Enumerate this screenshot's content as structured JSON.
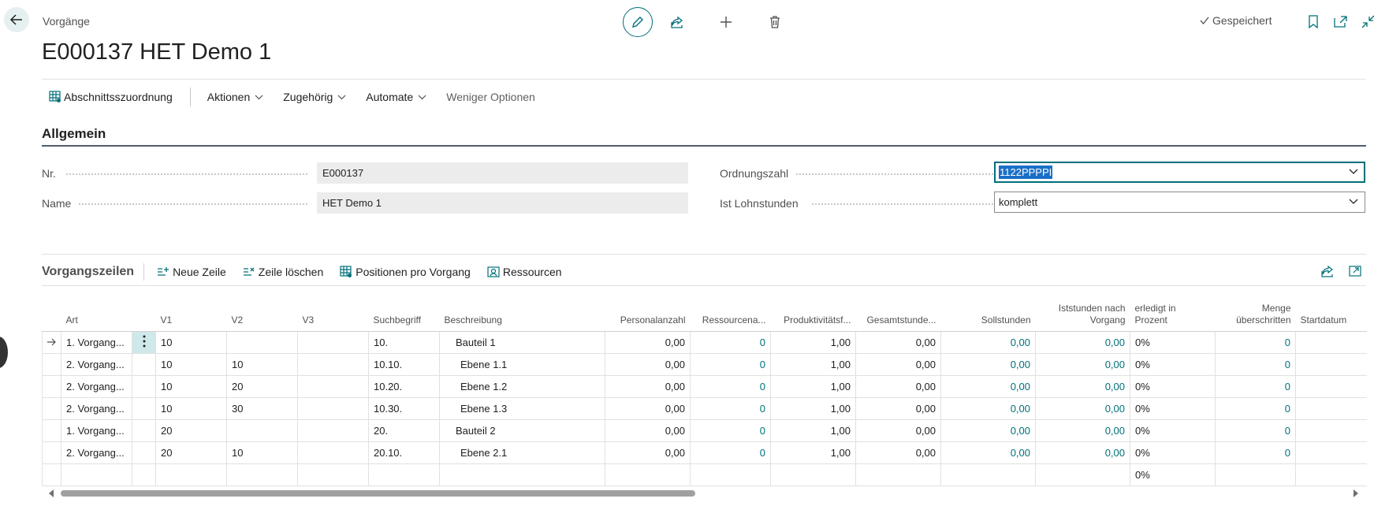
{
  "header": {
    "breadcrumb": "Vorgänge",
    "title": "E000137 HET Demo 1",
    "saved_label": "Gespeichert"
  },
  "actionbar": {
    "items": [
      {
        "label": "Abschnittsszuordnung"
      },
      {
        "label": "Aktionen"
      },
      {
        "label": "Zugehörig"
      },
      {
        "label": "Automate"
      },
      {
        "label": "Weniger Optionen"
      }
    ]
  },
  "general": {
    "title": "Allgemein",
    "nr_label": "Nr.",
    "nr_value": "E000137",
    "name_label": "Name",
    "name_value": "HET Demo 1",
    "ordnungszahl_label": "Ordnungszahl",
    "ordnungszahl_value": "1122PPPPI",
    "lohnstunden_label": "Ist Lohnstunden",
    "lohnstunden_value": "komplett"
  },
  "lines": {
    "title": "Vorgangszeilen",
    "actions": [
      {
        "label": "Neue Zeile"
      },
      {
        "label": "Zeile löschen"
      },
      {
        "label": "Positionen pro Vorgang"
      },
      {
        "label": "Ressourcen"
      }
    ],
    "columns": {
      "art": "Art",
      "v1": "V1",
      "v2": "V2",
      "v3": "V3",
      "suchbegriff": "Suchbegriff",
      "beschreibung": "Beschreibung",
      "personal": "Personalanzahl",
      "ressource": "Ressourcena...",
      "produkt": "Produktivitätsf...",
      "gesamt": "Gesamtstunde...",
      "soll": "Sollstunden",
      "ist_1": "Iststunden nach",
      "ist_2": "Vorgang",
      "erledigt_1": "erledigt in",
      "erledigt_2": "Prozent",
      "menge_1": "Menge",
      "menge_2": "überschritten",
      "start": "Startdatum"
    },
    "rows": [
      {
        "art": "1. Vorgang...",
        "v1": "10",
        "v2": "",
        "v3": "",
        "such": "10.",
        "beschr": "Bauteil 1",
        "personal": "0,00",
        "ressource": "0",
        "produkt": "1,00",
        "gesamt": "0,00",
        "soll": "0,00",
        "ist": "0,00",
        "erledigt": "0%",
        "menge": "0"
      },
      {
        "art": "2. Vorgang...",
        "v1": "10",
        "v2": "10",
        "v3": "",
        "such": "10.10.",
        "beschr": "Ebene 1.1",
        "personal": "0,00",
        "ressource": "0",
        "produkt": "1,00",
        "gesamt": "0,00",
        "soll": "0,00",
        "ist": "0,00",
        "erledigt": "0%",
        "menge": "0"
      },
      {
        "art": "2. Vorgang...",
        "v1": "10",
        "v2": "20",
        "v3": "",
        "such": "10.20.",
        "beschr": "Ebene 1.2",
        "personal": "0,00",
        "ressource": "0",
        "produkt": "1,00",
        "gesamt": "0,00",
        "soll": "0,00",
        "ist": "0,00",
        "erledigt": "0%",
        "menge": "0"
      },
      {
        "art": "2. Vorgang...",
        "v1": "10",
        "v2": "30",
        "v3": "",
        "such": "10.30.",
        "beschr": "Ebene 1.3",
        "personal": "0,00",
        "ressource": "0",
        "produkt": "1,00",
        "gesamt": "0,00",
        "soll": "0,00",
        "ist": "0,00",
        "erledigt": "0%",
        "menge": "0"
      },
      {
        "art": "1. Vorgang...",
        "v1": "20",
        "v2": "",
        "v3": "",
        "such": "20.",
        "beschr": "Bauteil 2",
        "personal": "0,00",
        "ressource": "0",
        "produkt": "1,00",
        "gesamt": "0,00",
        "soll": "0,00",
        "ist": "0,00",
        "erledigt": "0%",
        "menge": "0"
      },
      {
        "art": "2. Vorgang...",
        "v1": "20",
        "v2": "10",
        "v3": "",
        "such": "20.10.",
        "beschr": "Ebene 2.1",
        "personal": "0,00",
        "ressource": "0",
        "produkt": "1,00",
        "gesamt": "0,00",
        "soll": "0,00",
        "ist": "0,00",
        "erledigt": "0%",
        "menge": "0"
      },
      {
        "art": "",
        "v1": "",
        "v2": "",
        "v3": "",
        "such": "",
        "beschr": "",
        "personal": "",
        "ressource": "",
        "produkt": "",
        "gesamt": "",
        "soll": "",
        "ist": "",
        "erledigt": "0%",
        "menge": ""
      }
    ]
  },
  "colors": {
    "accent": "#00707a",
    "selection": "#1a6fc7"
  },
  "icons": [
    "back-arrow-icon",
    "pencil-icon",
    "share-icon",
    "plus-icon",
    "trash-icon",
    "checkmark-icon",
    "bookmark-icon",
    "open-new-icon",
    "collapse-icon",
    "chevron-down-icon",
    "arrow-right-icon",
    "more-vert-icon"
  ]
}
